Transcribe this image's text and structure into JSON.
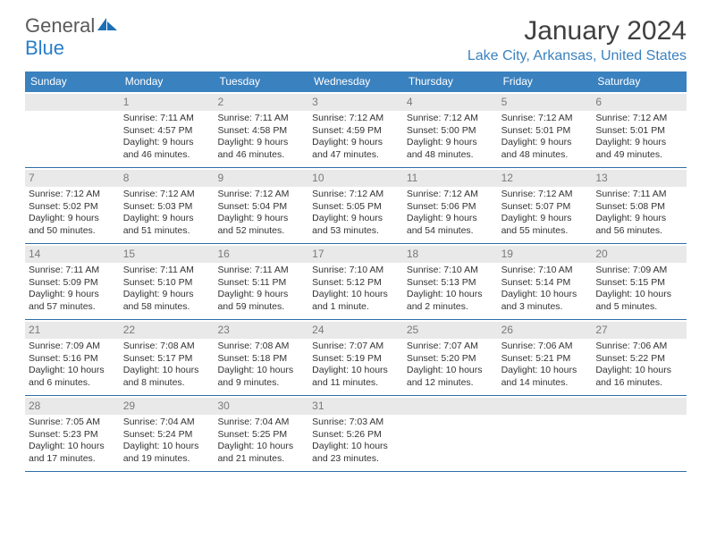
{
  "brand": {
    "general": "General",
    "blue": "Blue"
  },
  "title": "January 2024",
  "location": "Lake City, Arkansas, United States",
  "colors": {
    "header_bg": "#3a81bf",
    "header_text": "#ffffff",
    "row_border": "#2f6ea7",
    "daynum_bg": "#e9e9e9",
    "daynum_text": "#7a7a7a",
    "body_text": "#333333",
    "location_text": "#3a81bf",
    "logo_gray": "#5a5a5a",
    "logo_blue": "#2a7fc9"
  },
  "days_of_week": [
    "Sunday",
    "Monday",
    "Tuesday",
    "Wednesday",
    "Thursday",
    "Friday",
    "Saturday"
  ],
  "weeks": [
    [
      {
        "n": "",
        "sunrise": "",
        "sunset": "",
        "daylight": ""
      },
      {
        "n": "1",
        "sunrise": "Sunrise: 7:11 AM",
        "sunset": "Sunset: 4:57 PM",
        "daylight": "Daylight: 9 hours and 46 minutes."
      },
      {
        "n": "2",
        "sunrise": "Sunrise: 7:11 AM",
        "sunset": "Sunset: 4:58 PM",
        "daylight": "Daylight: 9 hours and 46 minutes."
      },
      {
        "n": "3",
        "sunrise": "Sunrise: 7:12 AM",
        "sunset": "Sunset: 4:59 PM",
        "daylight": "Daylight: 9 hours and 47 minutes."
      },
      {
        "n": "4",
        "sunrise": "Sunrise: 7:12 AM",
        "sunset": "Sunset: 5:00 PM",
        "daylight": "Daylight: 9 hours and 48 minutes."
      },
      {
        "n": "5",
        "sunrise": "Sunrise: 7:12 AM",
        "sunset": "Sunset: 5:01 PM",
        "daylight": "Daylight: 9 hours and 48 minutes."
      },
      {
        "n": "6",
        "sunrise": "Sunrise: 7:12 AM",
        "sunset": "Sunset: 5:01 PM",
        "daylight": "Daylight: 9 hours and 49 minutes."
      }
    ],
    [
      {
        "n": "7",
        "sunrise": "Sunrise: 7:12 AM",
        "sunset": "Sunset: 5:02 PM",
        "daylight": "Daylight: 9 hours and 50 minutes."
      },
      {
        "n": "8",
        "sunrise": "Sunrise: 7:12 AM",
        "sunset": "Sunset: 5:03 PM",
        "daylight": "Daylight: 9 hours and 51 minutes."
      },
      {
        "n": "9",
        "sunrise": "Sunrise: 7:12 AM",
        "sunset": "Sunset: 5:04 PM",
        "daylight": "Daylight: 9 hours and 52 minutes."
      },
      {
        "n": "10",
        "sunrise": "Sunrise: 7:12 AM",
        "sunset": "Sunset: 5:05 PM",
        "daylight": "Daylight: 9 hours and 53 minutes."
      },
      {
        "n": "11",
        "sunrise": "Sunrise: 7:12 AM",
        "sunset": "Sunset: 5:06 PM",
        "daylight": "Daylight: 9 hours and 54 minutes."
      },
      {
        "n": "12",
        "sunrise": "Sunrise: 7:12 AM",
        "sunset": "Sunset: 5:07 PM",
        "daylight": "Daylight: 9 hours and 55 minutes."
      },
      {
        "n": "13",
        "sunrise": "Sunrise: 7:11 AM",
        "sunset": "Sunset: 5:08 PM",
        "daylight": "Daylight: 9 hours and 56 minutes."
      }
    ],
    [
      {
        "n": "14",
        "sunrise": "Sunrise: 7:11 AM",
        "sunset": "Sunset: 5:09 PM",
        "daylight": "Daylight: 9 hours and 57 minutes."
      },
      {
        "n": "15",
        "sunrise": "Sunrise: 7:11 AM",
        "sunset": "Sunset: 5:10 PM",
        "daylight": "Daylight: 9 hours and 58 minutes."
      },
      {
        "n": "16",
        "sunrise": "Sunrise: 7:11 AM",
        "sunset": "Sunset: 5:11 PM",
        "daylight": "Daylight: 9 hours and 59 minutes."
      },
      {
        "n": "17",
        "sunrise": "Sunrise: 7:10 AM",
        "sunset": "Sunset: 5:12 PM",
        "daylight": "Daylight: 10 hours and 1 minute."
      },
      {
        "n": "18",
        "sunrise": "Sunrise: 7:10 AM",
        "sunset": "Sunset: 5:13 PM",
        "daylight": "Daylight: 10 hours and 2 minutes."
      },
      {
        "n": "19",
        "sunrise": "Sunrise: 7:10 AM",
        "sunset": "Sunset: 5:14 PM",
        "daylight": "Daylight: 10 hours and 3 minutes."
      },
      {
        "n": "20",
        "sunrise": "Sunrise: 7:09 AM",
        "sunset": "Sunset: 5:15 PM",
        "daylight": "Daylight: 10 hours and 5 minutes."
      }
    ],
    [
      {
        "n": "21",
        "sunrise": "Sunrise: 7:09 AM",
        "sunset": "Sunset: 5:16 PM",
        "daylight": "Daylight: 10 hours and 6 minutes."
      },
      {
        "n": "22",
        "sunrise": "Sunrise: 7:08 AM",
        "sunset": "Sunset: 5:17 PM",
        "daylight": "Daylight: 10 hours and 8 minutes."
      },
      {
        "n": "23",
        "sunrise": "Sunrise: 7:08 AM",
        "sunset": "Sunset: 5:18 PM",
        "daylight": "Daylight: 10 hours and 9 minutes."
      },
      {
        "n": "24",
        "sunrise": "Sunrise: 7:07 AM",
        "sunset": "Sunset: 5:19 PM",
        "daylight": "Daylight: 10 hours and 11 minutes."
      },
      {
        "n": "25",
        "sunrise": "Sunrise: 7:07 AM",
        "sunset": "Sunset: 5:20 PM",
        "daylight": "Daylight: 10 hours and 12 minutes."
      },
      {
        "n": "26",
        "sunrise": "Sunrise: 7:06 AM",
        "sunset": "Sunset: 5:21 PM",
        "daylight": "Daylight: 10 hours and 14 minutes."
      },
      {
        "n": "27",
        "sunrise": "Sunrise: 7:06 AM",
        "sunset": "Sunset: 5:22 PM",
        "daylight": "Daylight: 10 hours and 16 minutes."
      }
    ],
    [
      {
        "n": "28",
        "sunrise": "Sunrise: 7:05 AM",
        "sunset": "Sunset: 5:23 PM",
        "daylight": "Daylight: 10 hours and 17 minutes."
      },
      {
        "n": "29",
        "sunrise": "Sunrise: 7:04 AM",
        "sunset": "Sunset: 5:24 PM",
        "daylight": "Daylight: 10 hours and 19 minutes."
      },
      {
        "n": "30",
        "sunrise": "Sunrise: 7:04 AM",
        "sunset": "Sunset: 5:25 PM",
        "daylight": "Daylight: 10 hours and 21 minutes."
      },
      {
        "n": "31",
        "sunrise": "Sunrise: 7:03 AM",
        "sunset": "Sunset: 5:26 PM",
        "daylight": "Daylight: 10 hours and 23 minutes."
      },
      {
        "n": "",
        "sunrise": "",
        "sunset": "",
        "daylight": ""
      },
      {
        "n": "",
        "sunrise": "",
        "sunset": "",
        "daylight": ""
      },
      {
        "n": "",
        "sunrise": "",
        "sunset": "",
        "daylight": ""
      }
    ]
  ]
}
